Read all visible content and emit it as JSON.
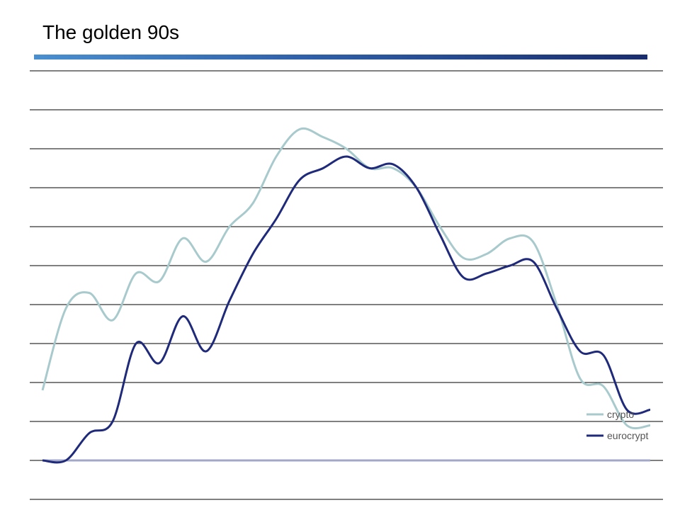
{
  "title": "The golden 90s",
  "chart_data": {
    "type": "line",
    "title": "The golden 90s",
    "xlabel": "",
    "ylabel": "",
    "ylim": [
      -1,
      10
    ],
    "grid": true,
    "legend_position": "bottom-right",
    "x": [
      0,
      1,
      2,
      3,
      4,
      5,
      6,
      7,
      8,
      9,
      10,
      11,
      12,
      13,
      14,
      15,
      16,
      17,
      18,
      19,
      20,
      21,
      22,
      23,
      24,
      25,
      26
    ],
    "series": [
      {
        "name": "crypto",
        "color": "#a8cacc",
        "values": [
          1.8,
          3.9,
          4.3,
          3.6,
          4.8,
          4.6,
          5.7,
          5.1,
          6.0,
          6.6,
          7.8,
          8.5,
          8.3,
          8.0,
          7.5,
          7.5,
          7.0,
          6.0,
          5.2,
          5.3,
          5.7,
          5.6,
          4.0,
          2.1,
          1.9,
          0.9,
          0.9
        ]
      },
      {
        "name": "eurocrypt",
        "color": "#1f2a7a",
        "values": [
          0.0,
          0.0,
          0.7,
          1.0,
          3.0,
          2.5,
          3.7,
          2.8,
          4.1,
          5.3,
          6.2,
          7.2,
          7.5,
          7.8,
          7.5,
          7.6,
          7.0,
          5.8,
          4.7,
          4.8,
          5.0,
          5.1,
          3.9,
          2.8,
          2.7,
          1.3,
          1.3
        ]
      }
    ],
    "baseline": {
      "value": 0,
      "color": "#a3a8c8"
    }
  }
}
